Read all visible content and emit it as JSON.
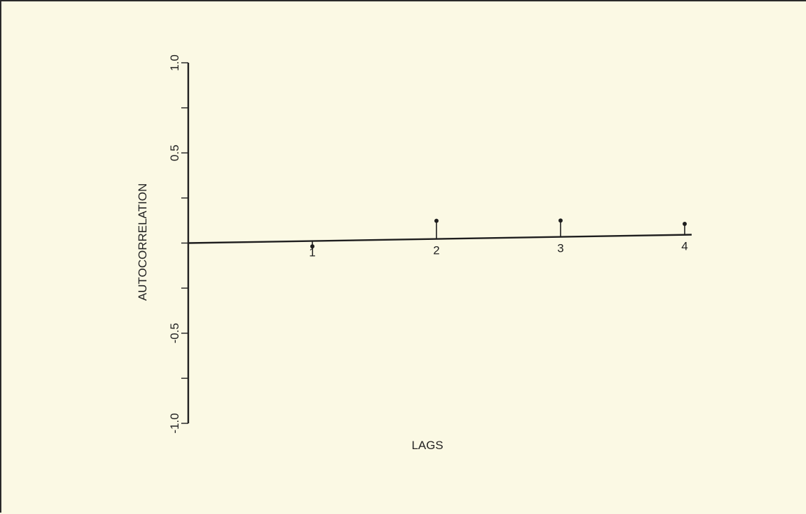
{
  "chart_data": {
    "type": "bar",
    "style": "stem",
    "xlabel": "LAGS",
    "ylabel": "AUTOCORRELATION",
    "x": [
      1,
      2,
      3,
      4
    ],
    "values": [
      -0.03,
      0.1,
      0.09,
      0.06
    ],
    "xlim": [
      0,
      4
    ],
    "ylim": [
      -1.0,
      1.0
    ],
    "xticks": [
      1,
      2,
      3,
      4
    ],
    "xtick_labels": [
      "1",
      "2",
      "3",
      "4"
    ],
    "yticks": [
      -1.0,
      -0.75,
      -0.5,
      -0.25,
      0,
      0.25,
      0.5,
      0.75,
      1.0
    ],
    "ytick_labels": [
      {
        "value": 1.0,
        "label": "1.0"
      },
      {
        "value": 0.5,
        "label": "0.5"
      },
      {
        "value": -0.5,
        "label": "-0.5"
      },
      {
        "value": -1.0,
        "label": "-1.0"
      }
    ],
    "grid": false,
    "colors": {
      "background": "#fbf9e4",
      "ink": "#1e1e1e"
    }
  }
}
